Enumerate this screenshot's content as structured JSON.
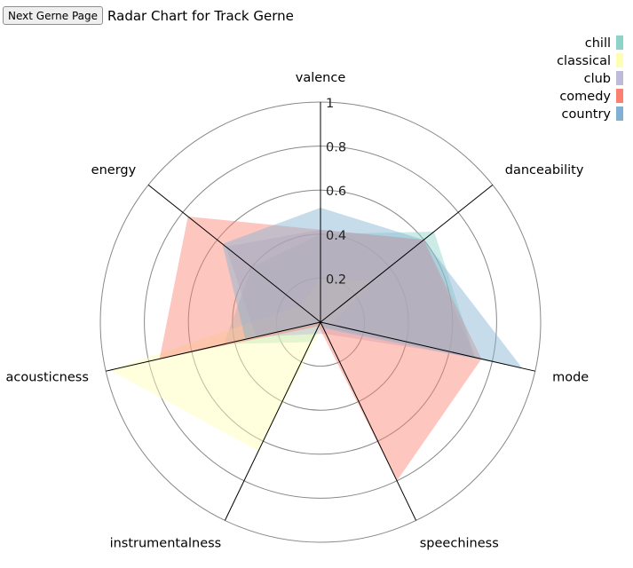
{
  "header": {
    "button_label": "Next Gerne Page",
    "title": "Radar Chart for Track Gerne"
  },
  "chart_data": {
    "type": "radar",
    "axes": [
      "valence",
      "danceability",
      "mode",
      "speechiness",
      "instrumentalness",
      "acousticness",
      "energy"
    ],
    "ticks": [
      "0.2",
      "0.4",
      "0.6",
      "0.8",
      "1"
    ],
    "range": [
      0,
      1
    ],
    "grid": true,
    "legend_position": "top-right",
    "series": [
      {
        "name": "chill",
        "color": "#8dd3c7",
        "values": [
          0.4,
          0.66,
          0.72,
          0.02,
          0.1,
          0.45,
          0.4
        ]
      },
      {
        "name": "classical",
        "color": "#ffffb3",
        "values": [
          0.2,
          0.3,
          0.05,
          0.02,
          0.65,
          0.98,
          0.12
        ]
      },
      {
        "name": "club",
        "color": "#bebada",
        "values": [
          0.42,
          0.6,
          0.72,
          0.06,
          0.06,
          0.3,
          0.55
        ]
      },
      {
        "name": "comedy",
        "color": "#fb8072",
        "values": [
          0.42,
          0.6,
          0.75,
          0.8,
          0.02,
          0.75,
          0.77
        ]
      },
      {
        "name": "country",
        "color": "#80b1d3",
        "values": [
          0.52,
          0.6,
          0.94,
          0.03,
          0.01,
          0.35,
          0.57
        ]
      }
    ]
  }
}
